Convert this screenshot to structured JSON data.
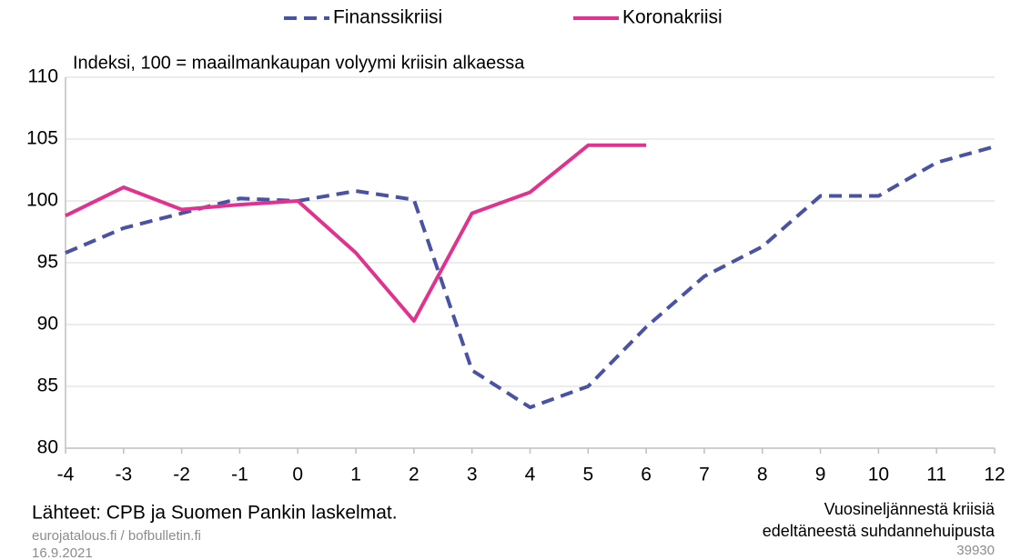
{
  "chart_data": {
    "type": "line",
    "subtitle": "Indeksi, 100 = maailmankaupan volyymi kriisin alkaessa",
    "x": [
      -4,
      -3,
      -2,
      -1,
      0,
      1,
      2,
      3,
      4,
      5,
      6,
      7,
      8,
      9,
      10,
      11,
      12
    ],
    "series": [
      {
        "name": "Finanssikriisi",
        "color": "#4a52a3",
        "dashed": true,
        "values": [
          95.8,
          97.8,
          99.0,
          100.2,
          100.0,
          100.8,
          100.1,
          86.3,
          83.3,
          85.0,
          89.8,
          93.9,
          96.3,
          100.4,
          100.4,
          103.1,
          104.4
        ]
      },
      {
        "name": "Koronakriisi",
        "color": "#e0338f",
        "dashed": false,
        "values": [
          98.8,
          101.1,
          99.3,
          99.7,
          100.0,
          95.8,
          90.3,
          99.0,
          100.7,
          104.5,
          104.5,
          null,
          null,
          null,
          null,
          null,
          null
        ]
      }
    ],
    "xlim": [
      -4,
      12
    ],
    "xticks": [
      -4,
      -3,
      -2,
      -1,
      0,
      1,
      2,
      3,
      4,
      5,
      6,
      7,
      8,
      9,
      10,
      11,
      12
    ],
    "ylim": [
      80,
      110
    ],
    "yticks": [
      80,
      85,
      90,
      95,
      100,
      105,
      110
    ],
    "grid": true,
    "legend": "top",
    "xlabel": [
      "Vuosineljännestä kriisiä",
      "edeltäneestä suhdannehuipusta"
    ],
    "source": "Lähteet: CPB ja Suomen Pankin laskelmat.",
    "footer": [
      "eurojatalous.fi / bofbulletin.fi",
      "16.9.2021"
    ],
    "code": "39930"
  }
}
